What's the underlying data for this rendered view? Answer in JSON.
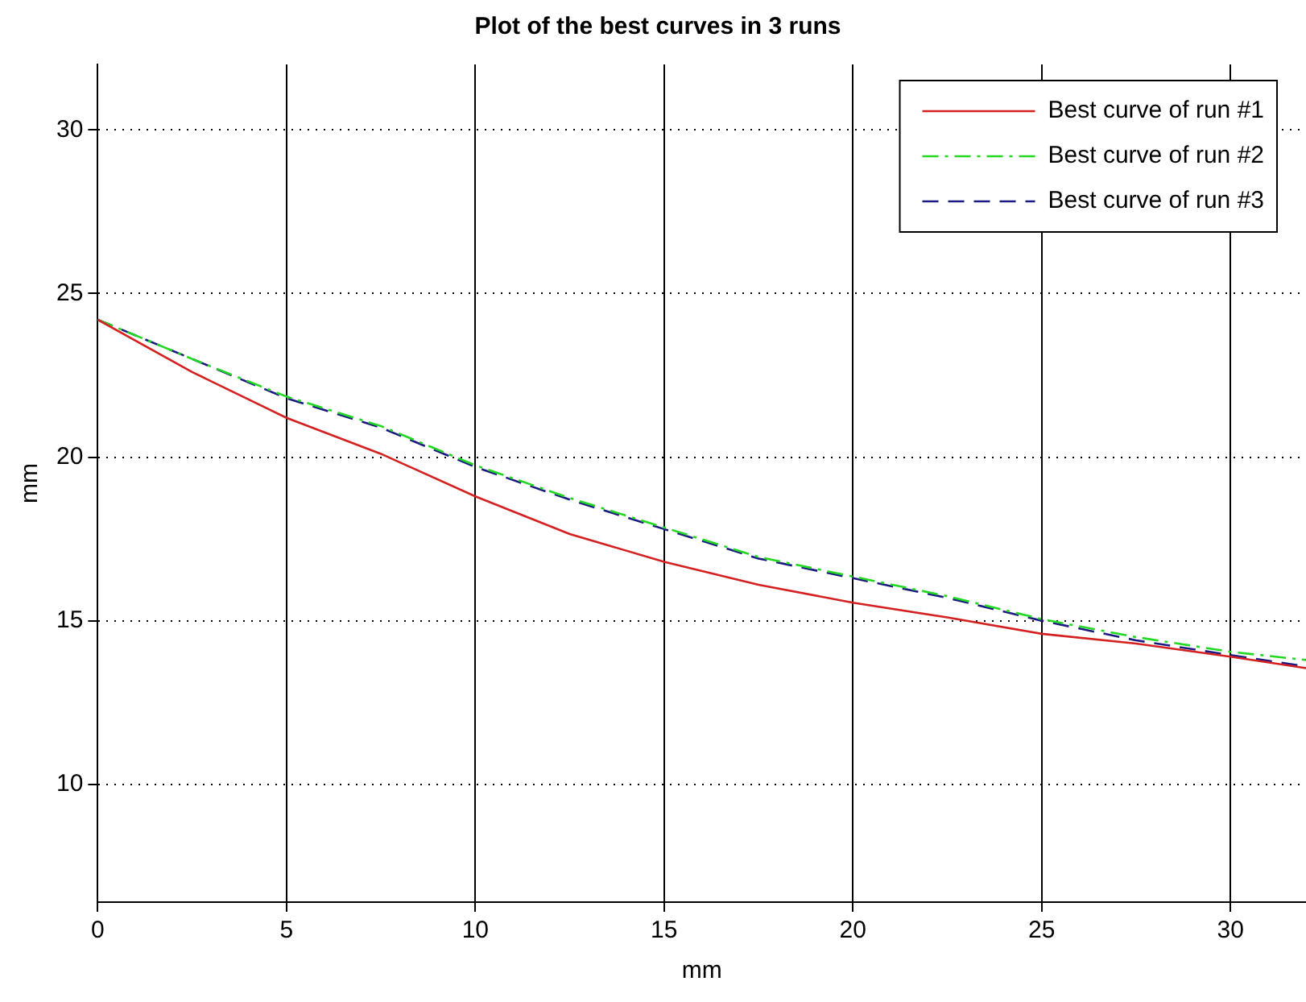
{
  "chart_data": {
    "type": "line",
    "title": "Plot of the best curves in 3 runs",
    "xlabel": "mm",
    "ylabel": "mm",
    "xlim": [
      0,
      32
    ],
    "ylim": [
      6.4,
      32
    ],
    "xticks": [
      0,
      5,
      10,
      15,
      20,
      25,
      30
    ],
    "yticks": [
      10,
      15,
      20,
      25,
      30
    ],
    "grid": true,
    "legend": "top right",
    "marker": "none",
    "series": [
      {
        "name": "Best curve of run #1",
        "color": "#d42020",
        "line_style": "solid",
        "x": [
          0,
          2.5,
          5,
          7.5,
          10,
          12.5,
          15,
          17.5,
          20,
          22.5,
          25,
          27.5,
          30,
          32
        ],
        "values": [
          24.2,
          22.6,
          21.2,
          20.1,
          18.8,
          17.65,
          16.8,
          16.1,
          15.55,
          15.1,
          14.6,
          14.3,
          13.9,
          13.55
        ]
      },
      {
        "name": "Best curve of run #2",
        "color": "#22d822",
        "line_style": "dashdot",
        "x": [
          0,
          2.5,
          5,
          7.5,
          10,
          12.5,
          15,
          17.5,
          20,
          22.5,
          25,
          27.5,
          30,
          32
        ],
        "values": [
          24.2,
          23.0,
          21.85,
          20.95,
          19.75,
          18.75,
          17.85,
          16.95,
          16.35,
          15.75,
          15.05,
          14.5,
          14.05,
          13.8
        ]
      },
      {
        "name": "Best curve of run #3",
        "color": "#1a1a80",
        "line_style": "dashed",
        "x": [
          0,
          2.5,
          5,
          7.5,
          10,
          12.5,
          15,
          17.5,
          20,
          22.5,
          25,
          27.5,
          30,
          32
        ],
        "values": [
          24.2,
          23.0,
          21.8,
          20.9,
          19.7,
          18.7,
          17.8,
          16.9,
          16.3,
          15.7,
          15.0,
          14.4,
          13.95,
          13.6
        ]
      }
    ]
  }
}
